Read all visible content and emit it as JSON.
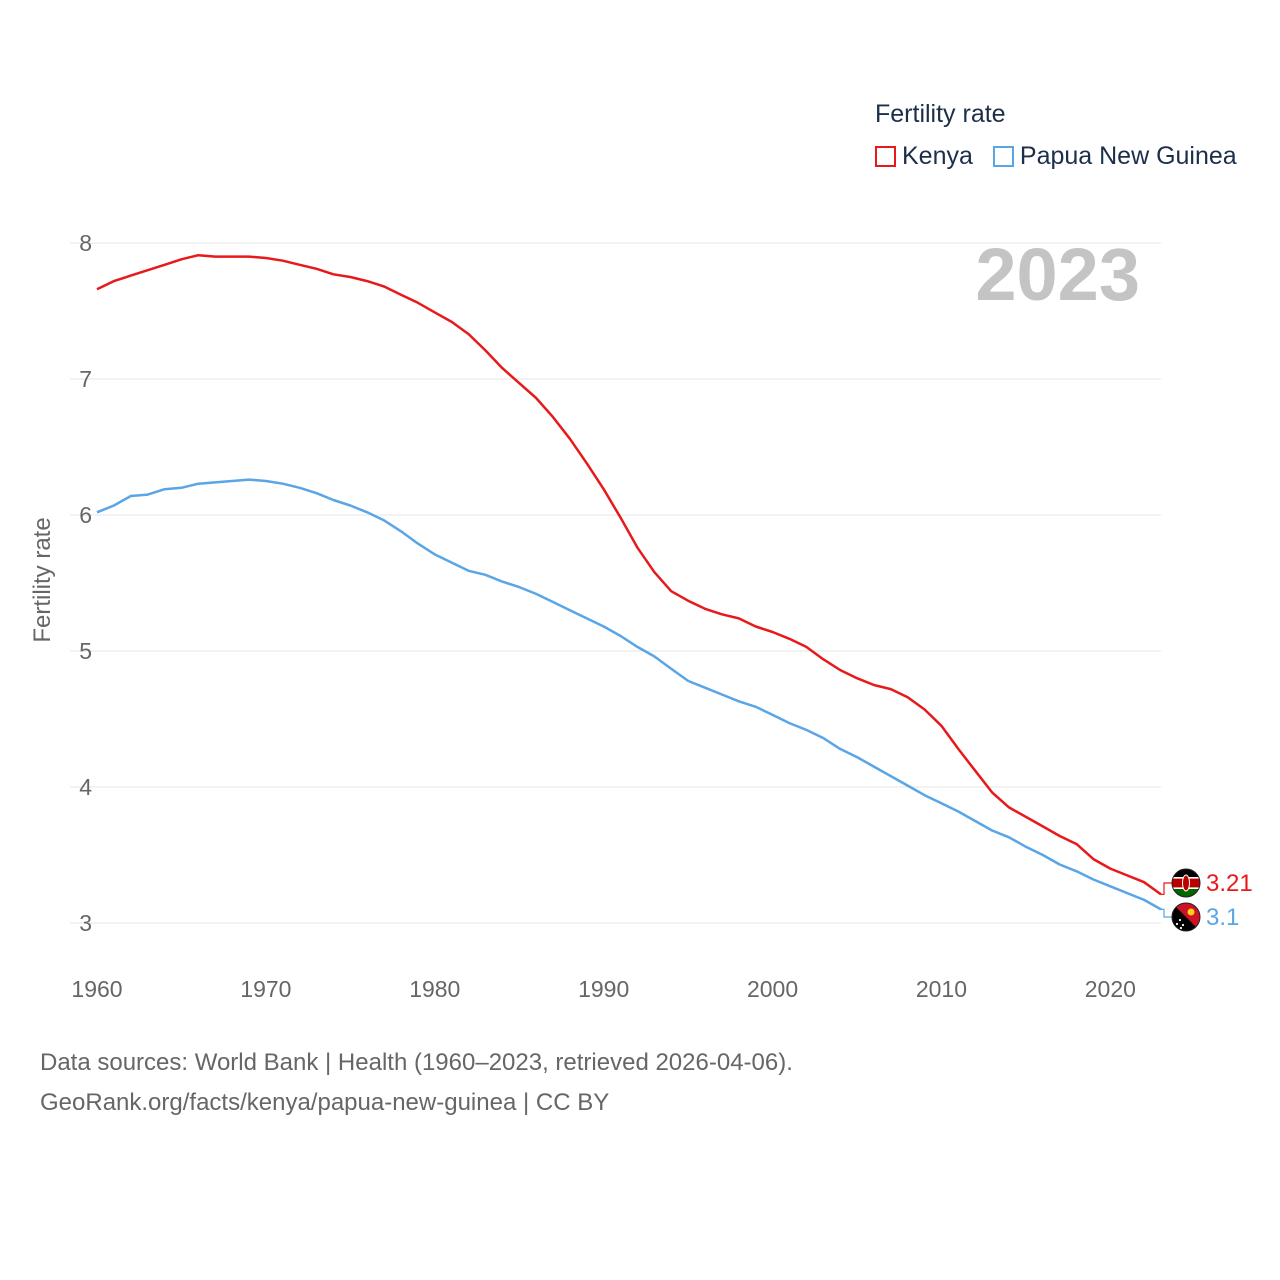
{
  "legend": {
    "title": "Fertility rate",
    "items": [
      {
        "label": "Kenya",
        "color": "#e8191a"
      },
      {
        "label": "Papua New Guinea",
        "color": "#5aa5e6"
      }
    ]
  },
  "year_label": "2023",
  "source": {
    "line1": "Data sources: World Bank | Health (1960–2023, retrieved 2026-04-06).",
    "line2": "GeoRank.org/facts/kenya/papua-new-guinea | CC BY"
  },
  "chart_data": {
    "type": "line",
    "title": "Fertility rate",
    "xlabel": "",
    "ylabel": "Fertility rate",
    "xlim": [
      1960,
      2023
    ],
    "ylim": [
      3,
      8
    ],
    "yticks": [
      3,
      4,
      5,
      6,
      7,
      8
    ],
    "xticks": [
      1960,
      1970,
      1980,
      1990,
      2000,
      2010,
      2020
    ],
    "grid": true,
    "legend_position": "top-right",
    "x": [
      1960,
      1961,
      1962,
      1963,
      1964,
      1965,
      1966,
      1967,
      1968,
      1969,
      1970,
      1971,
      1972,
      1973,
      1974,
      1975,
      1976,
      1977,
      1978,
      1979,
      1980,
      1981,
      1982,
      1983,
      1984,
      1985,
      1986,
      1987,
      1988,
      1989,
      1990,
      1991,
      1992,
      1993,
      1994,
      1995,
      1996,
      1997,
      1998,
      1999,
      2000,
      2001,
      2002,
      2003,
      2004,
      2005,
      2006,
      2007,
      2008,
      2009,
      2010,
      2011,
      2012,
      2013,
      2014,
      2015,
      2016,
      2017,
      2018,
      2019,
      2020,
      2021,
      2022,
      2023
    ],
    "series": [
      {
        "name": "Kenya",
        "color": "#e8191a",
        "end_label": "3.21",
        "values": [
          7.66,
          7.72,
          7.76,
          7.8,
          7.84,
          7.88,
          7.91,
          7.9,
          7.9,
          7.9,
          7.89,
          7.87,
          7.84,
          7.81,
          7.77,
          7.75,
          7.72,
          7.68,
          7.62,
          7.56,
          7.49,
          7.42,
          7.33,
          7.21,
          7.08,
          6.97,
          6.86,
          6.72,
          6.56,
          6.38,
          6.19,
          5.98,
          5.76,
          5.58,
          5.44,
          5.37,
          5.31,
          5.27,
          5.24,
          5.18,
          5.14,
          5.09,
          5.03,
          4.94,
          4.86,
          4.8,
          4.75,
          4.72,
          4.66,
          4.57,
          4.45,
          4.28,
          4.12,
          3.96,
          3.85,
          3.78,
          3.71,
          3.64,
          3.58,
          3.47,
          3.4,
          3.35,
          3.3,
          3.21
        ]
      },
      {
        "name": "Papua New Guinea",
        "color": "#5aa5e6",
        "end_label": "3.1",
        "values": [
          6.02,
          6.07,
          6.14,
          6.15,
          6.19,
          6.2,
          6.23,
          6.24,
          6.25,
          6.26,
          6.25,
          6.23,
          6.2,
          6.16,
          6.11,
          6.07,
          6.02,
          5.96,
          5.88,
          5.79,
          5.71,
          5.65,
          5.59,
          5.56,
          5.51,
          5.47,
          5.42,
          5.36,
          5.3,
          5.24,
          5.18,
          5.11,
          5.03,
          4.96,
          4.87,
          4.78,
          4.73,
          4.68,
          4.63,
          4.59,
          4.53,
          4.47,
          4.42,
          4.36,
          4.28,
          4.22,
          4.15,
          4.08,
          4.01,
          3.94,
          3.88,
          3.82,
          3.75,
          3.68,
          3.63,
          3.56,
          3.5,
          3.43,
          3.38,
          3.32,
          3.27,
          3.22,
          3.17,
          3.1
        ]
      }
    ]
  }
}
